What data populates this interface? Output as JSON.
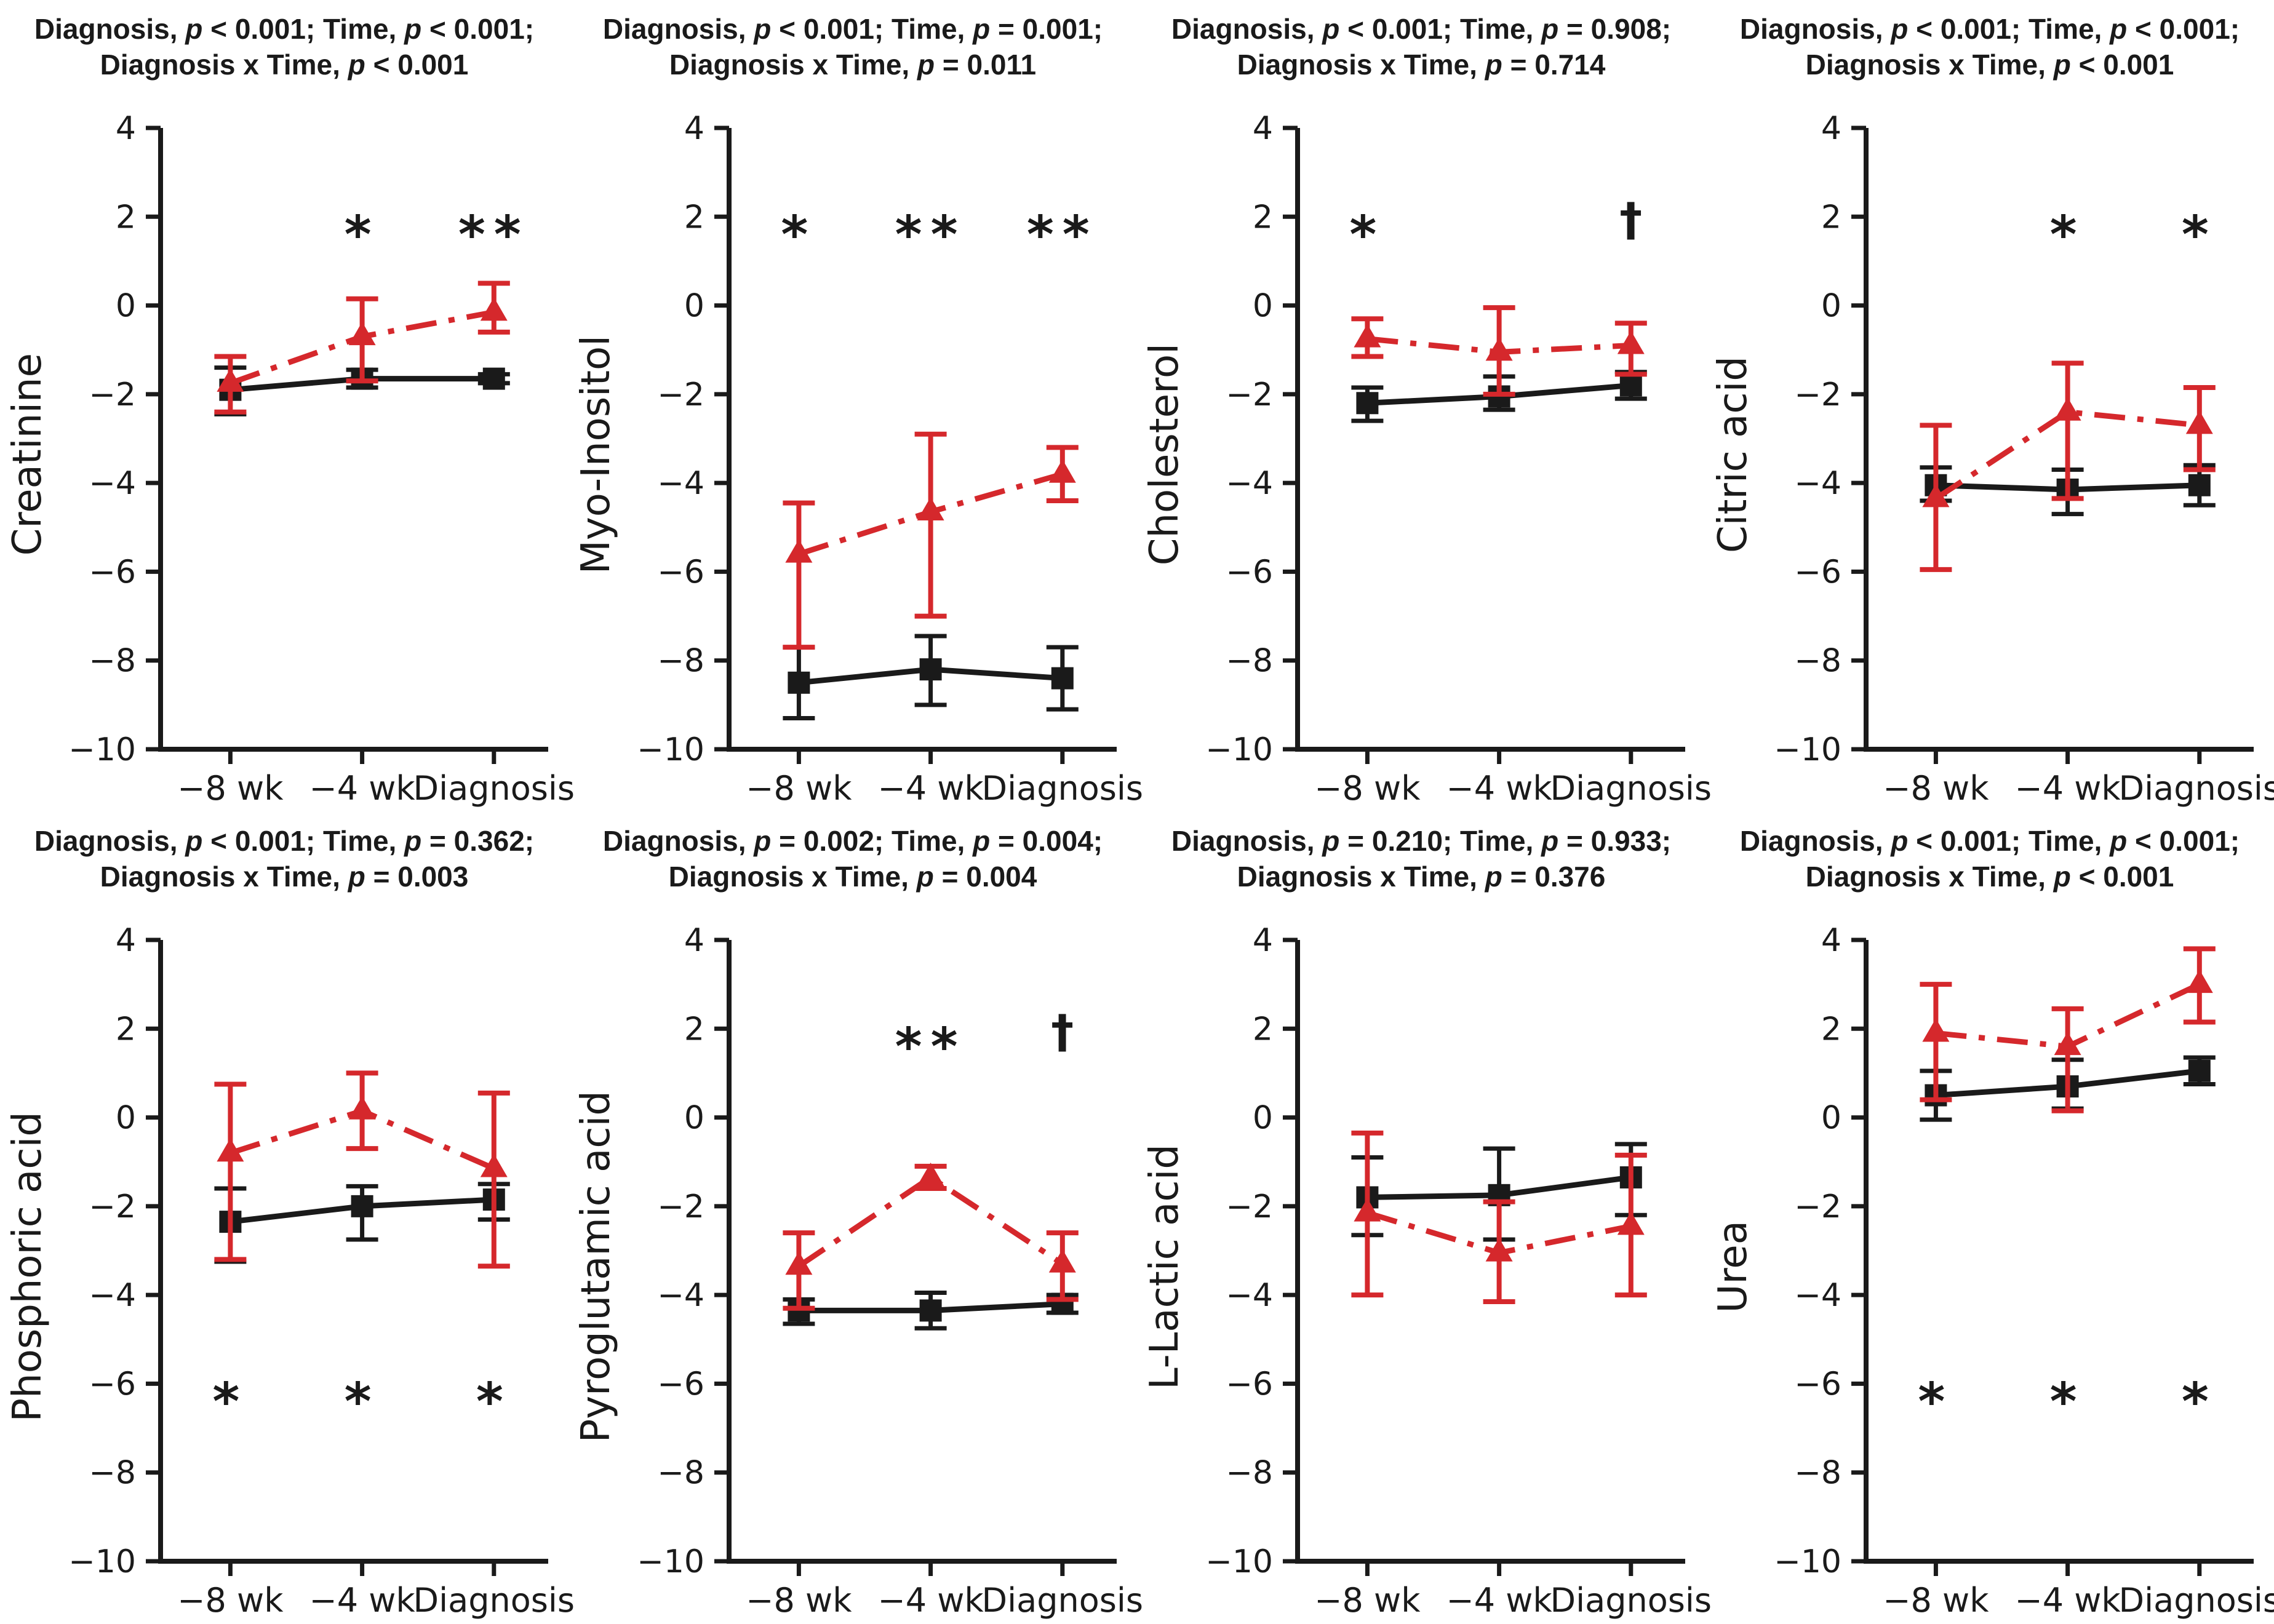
{
  "figure": {
    "background": "#ffffff",
    "axis_color": "#1a1a1a",
    "black_series_color": "#1a1a1a",
    "red_series_color": "#d5282c"
  },
  "chart_data": {
    "type": "line",
    "shared": {
      "categories": [
        "−8 wk",
        "−4 wk",
        "Diagnosis"
      ],
      "y_ticks": [
        4,
        2,
        0,
        -2,
        -4,
        -6,
        -8,
        -10
      ],
      "ylim": [
        -10,
        4
      ],
      "grid": false,
      "legend": "none",
      "series_styles": [
        {
          "key": "black",
          "name": "control-black-square-solid",
          "color": "#1a1a1a",
          "marker": "square",
          "line": "solid"
        },
        {
          "key": "red",
          "name": "case-red-triangle-dashdot",
          "color": "#d5282c",
          "marker": "triangle",
          "line": "dashdot"
        }
      ]
    },
    "panels": [
      {
        "ylabel": "Creatinine",
        "title_lines": [
          "Diagnosis, *p* < 0.001; Time, *p* < 0.001;",
          "Diagnosis x Time, *p* < 0.001"
        ],
        "black": {
          "y": [
            -1.9,
            -1.65,
            -1.65
          ],
          "err_lo": [
            0.55,
            0.2,
            0.1
          ],
          "err_hi": [
            0.5,
            0.2,
            0.1
          ]
        },
        "red": {
          "y": [
            -1.75,
            -0.7,
            -0.15
          ],
          "err_lo": [
            0.65,
            1.0,
            0.45
          ],
          "err_hi": [
            0.6,
            0.85,
            0.65
          ]
        },
        "annotations": [
          {
            "x": 1,
            "y": 2,
            "text": "*"
          },
          {
            "x": 2,
            "y": 2,
            "text": "**"
          }
        ]
      },
      {
        "ylabel": "Myo-Inositol",
        "title_lines": [
          "Diagnosis, *p* < 0.001; Time, *p* = 0.001;",
          "Diagnosis x Time, *p* = 0.011"
        ],
        "black": {
          "y": [
            -8.5,
            -8.2,
            -8.4
          ],
          "err_lo": [
            0.8,
            0.8,
            0.7
          ],
          "err_hi": [
            0.8,
            0.75,
            0.7
          ]
        },
        "red": {
          "y": [
            -5.6,
            -4.65,
            -3.8
          ],
          "err_lo": [
            2.1,
            2.35,
            0.6
          ],
          "err_hi": [
            1.15,
            1.75,
            0.6
          ]
        },
        "annotations": [
          {
            "x": 0,
            "y": 2,
            "text": "*"
          },
          {
            "x": 1,
            "y": 2,
            "text": "**"
          },
          {
            "x": 2,
            "y": 2,
            "text": "**"
          }
        ]
      },
      {
        "ylabel": "Cholesterol",
        "title_lines": [
          "Diagnosis, *p* < 0.001; Time, *p* = 0.908;",
          "Diagnosis x Time, *p* = 0.714"
        ],
        "black": {
          "y": [
            -2.2,
            -2.05,
            -1.8
          ],
          "err_lo": [
            0.4,
            0.3,
            0.3
          ],
          "err_hi": [
            0.35,
            0.45,
            0.3
          ]
        },
        "red": {
          "y": [
            -0.75,
            -1.05,
            -0.9
          ],
          "err_lo": [
            0.4,
            0.95,
            0.65
          ],
          "err_hi": [
            0.45,
            1.0,
            0.5
          ]
        },
        "annotations": [
          {
            "x": 0,
            "y": 2,
            "text": "*"
          },
          {
            "x": 2,
            "y": 2,
            "text": "†"
          }
        ]
      },
      {
        "ylabel": "Citric acid",
        "title_lines": [
          "Diagnosis, *p* < 0.001; Time, *p* < 0.001;",
          "Diagnosis x Time, *p* < 0.001"
        ],
        "black": {
          "y": [
            -4.05,
            -4.15,
            -4.05
          ],
          "err_lo": [
            0.35,
            0.55,
            0.45
          ],
          "err_hi": [
            0.4,
            0.45,
            0.45
          ]
        },
        "red": {
          "y": [
            -4.35,
            -2.4,
            -2.7
          ],
          "err_lo": [
            1.6,
            1.95,
            1.0
          ],
          "err_hi": [
            1.65,
            1.1,
            0.85
          ]
        },
        "annotations": [
          {
            "x": 1,
            "y": 2,
            "text": "*"
          },
          {
            "x": 2,
            "y": 2,
            "text": "*"
          }
        ]
      },
      {
        "ylabel": "Phosphoric acid",
        "title_lines": [
          "Diagnosis, *p* < 0.001; Time, *p* = 0.362;",
          "Diagnosis x Time, *p* = 0.003"
        ],
        "black": {
          "y": [
            -2.35,
            -2.0,
            -1.85
          ],
          "err_lo": [
            0.9,
            0.75,
            0.45
          ],
          "err_hi": [
            0.75,
            0.45,
            0.35
          ]
        },
        "red": {
          "y": [
            -0.8,
            0.15,
            -1.15
          ],
          "err_lo": [
            2.4,
            0.85,
            2.2
          ],
          "err_hi": [
            1.55,
            0.85,
            1.7
          ]
        },
        "annotations": [
          {
            "x": 0,
            "y": -6,
            "text": "*"
          },
          {
            "x": 1,
            "y": -6,
            "text": "*"
          },
          {
            "x": 2,
            "y": -6,
            "text": "*"
          }
        ]
      },
      {
        "ylabel": "Pyroglutamic acid",
        "title_lines": [
          "Diagnosis, *p* = 0.002; Time, *p* = 0.004;",
          "Diagnosis x Time, *p* = 0.004"
        ],
        "black": {
          "y": [
            -4.35,
            -4.35,
            -4.2
          ],
          "err_lo": [
            0.3,
            0.4,
            0.2
          ],
          "err_hi": [
            0.25,
            0.4,
            0.2
          ]
        },
        "red": {
          "y": [
            -3.35,
            -1.35,
            -3.3
          ],
          "err_lo": [
            0.95,
            0.25,
            0.8
          ],
          "err_hi": [
            0.75,
            0.25,
            0.7
          ]
        },
        "annotations": [
          {
            "x": 1,
            "y": 2,
            "text": "**"
          },
          {
            "x": 2,
            "y": 2,
            "text": "†"
          }
        ]
      },
      {
        "ylabel": "L-Lactic acid",
        "title_lines": [
          "Diagnosis, *p* = 0.210; Time, *p* = 0.933;",
          "Diagnosis x Time, *p* = 0.376"
        ],
        "black": {
          "y": [
            -1.8,
            -1.75,
            -1.35
          ],
          "err_lo": [
            0.85,
            1.0,
            0.85
          ],
          "err_hi": [
            0.9,
            1.05,
            0.75
          ]
        },
        "red": {
          "y": [
            -2.15,
            -3.05,
            -2.45
          ],
          "err_lo": [
            1.85,
            1.1,
            1.55
          ],
          "err_hi": [
            1.8,
            1.15,
            1.6
          ]
        },
        "annotations": []
      },
      {
        "ylabel": "Urea",
        "title_lines": [
          "Diagnosis, *p* < 0.001; Time, *p* < 0.001;",
          "Diagnosis x Time, *p* < 0.001"
        ],
        "black": {
          "y": [
            0.5,
            0.7,
            1.05
          ],
          "err_lo": [
            0.55,
            0.5,
            0.3
          ],
          "err_hi": [
            0.55,
            0.6,
            0.3
          ]
        },
        "red": {
          "y": [
            1.9,
            1.6,
            3.0
          ],
          "err_lo": [
            1.5,
            1.45,
            0.85
          ],
          "err_hi": [
            1.1,
            0.85,
            0.8
          ]
        },
        "annotations": [
          {
            "x": 0,
            "y": -6,
            "text": "*"
          },
          {
            "x": 1,
            "y": -6,
            "text": "*"
          },
          {
            "x": 2,
            "y": -6,
            "text": "*"
          }
        ]
      }
    ]
  }
}
